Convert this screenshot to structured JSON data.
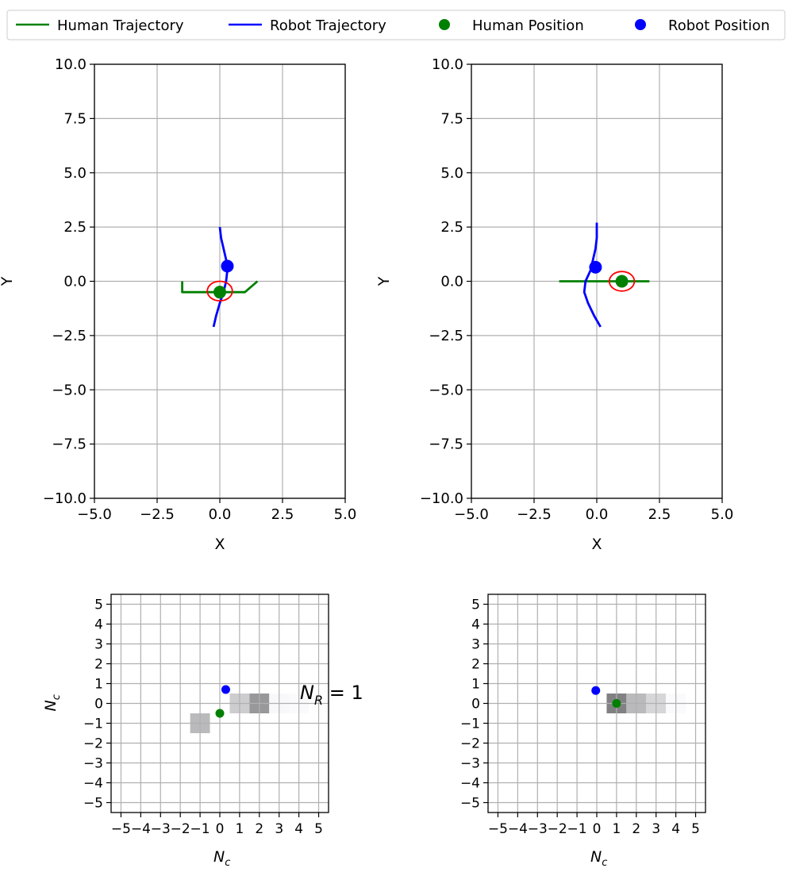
{
  "legend": {
    "entries": [
      {
        "label": "Human Trajectory",
        "kind": "line",
        "color": "#008000"
      },
      {
        "label": "Robot Trajectory",
        "kind": "line",
        "color": "#0000ff"
      },
      {
        "label": "Human Position",
        "kind": "marker",
        "color": "#008000"
      },
      {
        "label": "Robot Position",
        "kind": "marker",
        "color": "#0000ff"
      }
    ],
    "placement": "top"
  },
  "colors": {
    "human": "#008000",
    "robot": "#0000ff",
    "ellipse": "#ff0000",
    "grid": "#b0b0b0"
  },
  "nr_label": {
    "base": "N",
    "sub": "R",
    "suffix": " = 1"
  },
  "chart_data": [
    {
      "type": "line",
      "xlabel": "X",
      "ylabel": "Y",
      "xlim": [
        -5,
        5
      ],
      "ylim": [
        -10,
        10
      ],
      "xticks": [
        -5,
        -2.5,
        0,
        2.5,
        5
      ],
      "yticks": [
        -10,
        -7.5,
        -5,
        -2.5,
        0,
        2.5,
        5,
        7.5,
        10
      ],
      "xtick_labels": [
        "−5.0",
        "−2.5",
        "0.0",
        "2.5",
        "5.0"
      ],
      "ytick_labels": [
        "−10.0",
        "−7.5",
        "−5.0",
        "−2.5",
        "0.0",
        "2.5",
        "5.0",
        "7.5",
        "10.0"
      ],
      "grid": true,
      "series": [
        {
          "name": "Human Trajectory",
          "role": "human_traj",
          "x": [
            -1.5,
            -1.5,
            1.0,
            1.5
          ],
          "y": [
            0.0,
            -0.5,
            -0.5,
            0.0
          ]
        },
        {
          "name": "Robot Trajectory",
          "role": "robot_traj",
          "x": [
            0.0,
            0.05,
            0.15,
            0.25,
            0.3,
            0.25,
            0.15,
            0.0,
            -0.15,
            -0.25
          ],
          "y": [
            2.5,
            2.0,
            1.5,
            1.0,
            0.5,
            0.0,
            -0.5,
            -1.0,
            -1.6,
            -2.1
          ]
        },
        {
          "name": "Human Position",
          "role": "human_pos",
          "x": [
            0.0
          ],
          "y": [
            -0.5
          ]
        },
        {
          "name": "Robot Position",
          "role": "robot_pos",
          "x": [
            0.3
          ],
          "y": [
            0.7
          ]
        }
      ],
      "ellipse": {
        "cx": 0.0,
        "cy": -0.45,
        "rx": 0.5,
        "ry": 0.45
      }
    },
    {
      "type": "line",
      "xlabel": "X",
      "ylabel": "Y",
      "xlim": [
        -5,
        5
      ],
      "ylim": [
        -10,
        10
      ],
      "xticks": [
        -5,
        -2.5,
        0,
        2.5,
        5
      ],
      "yticks": [
        -10,
        -7.5,
        -5,
        -2.5,
        0,
        2.5,
        5,
        7.5,
        10
      ],
      "xtick_labels": [
        "−5.0",
        "−2.5",
        "0.0",
        "2.5",
        "5.0"
      ],
      "ytick_labels": [
        "−10.0",
        "−7.5",
        "−5.0",
        "−2.5",
        "0.0",
        "2.5",
        "5.0",
        "7.5",
        "10.0"
      ],
      "grid": true,
      "series": [
        {
          "name": "Human Trajectory",
          "role": "human_traj",
          "x": [
            -1.5,
            2.1
          ],
          "y": [
            0.0,
            0.0
          ]
        },
        {
          "name": "Robot Trajectory",
          "role": "robot_traj",
          "x": [
            0.0,
            0.0,
            -0.05,
            -0.15,
            -0.25,
            -0.45,
            -0.5,
            -0.35,
            -0.1,
            0.15
          ],
          "y": [
            2.7,
            2.0,
            1.5,
            1.0,
            0.5,
            0.0,
            -0.5,
            -1.0,
            -1.6,
            -2.1
          ]
        },
        {
          "name": "Human Position",
          "role": "human_pos",
          "x": [
            1.0
          ],
          "y": [
            0.0
          ]
        },
        {
          "name": "Robot Position",
          "role": "robot_pos",
          "x": [
            -0.05
          ],
          "y": [
            0.65
          ]
        }
      ],
      "ellipse": {
        "cx": 1.0,
        "cy": 0.0,
        "rx": 0.5,
        "ry": 0.45
      }
    },
    {
      "type": "heatmap",
      "xlabel": "N_c",
      "ylabel": "N_c",
      "xlim": [
        -5.5,
        5.5
      ],
      "ylim": [
        -5.5,
        5.5
      ],
      "ticks": [
        -5,
        -4,
        -3,
        -2,
        -1,
        0,
        1,
        2,
        3,
        4,
        5
      ],
      "tick_labels": [
        "−5",
        "−4",
        "−3",
        "−2",
        "−1",
        "0",
        "1",
        "2",
        "3",
        "4",
        "5"
      ],
      "grid": true,
      "cells": [
        {
          "x": -1,
          "y": -1,
          "v": 0.3
        },
        {
          "x": 1,
          "y": 0,
          "v": 0.22
        },
        {
          "x": 2,
          "y": 0,
          "v": 0.45
        },
        {
          "x": 3,
          "y": 0,
          "v": 0.03
        },
        {
          "x": 4,
          "y": 0,
          "v": 0.02
        }
      ],
      "points": [
        {
          "role": "human_pos",
          "x": 0.0,
          "y": -0.5
        },
        {
          "role": "robot_pos",
          "x": 0.3,
          "y": 0.7
        }
      ]
    },
    {
      "type": "heatmap",
      "xlabel": "N_c",
      "ylabel": "",
      "xlim": [
        -5.5,
        5.5
      ],
      "ylim": [
        -5.5,
        5.5
      ],
      "ticks": [
        -5,
        -4,
        -3,
        -2,
        -1,
        0,
        1,
        2,
        3,
        4,
        5
      ],
      "tick_labels": [
        "−5",
        "−4",
        "−3",
        "−2",
        "−1",
        "0",
        "1",
        "2",
        "3",
        "4",
        "5"
      ],
      "grid": true,
      "cells": [
        {
          "x": 1,
          "y": 0,
          "v": 0.55
        },
        {
          "x": 2,
          "y": 0,
          "v": 0.3
        },
        {
          "x": 3,
          "y": 0,
          "v": 0.18
        },
        {
          "x": 4,
          "y": 0,
          "v": 0.02
        }
      ],
      "points": [
        {
          "role": "human_pos",
          "x": 1.0,
          "y": 0.0
        },
        {
          "role": "robot_pos",
          "x": -0.05,
          "y": 0.65
        }
      ]
    }
  ]
}
